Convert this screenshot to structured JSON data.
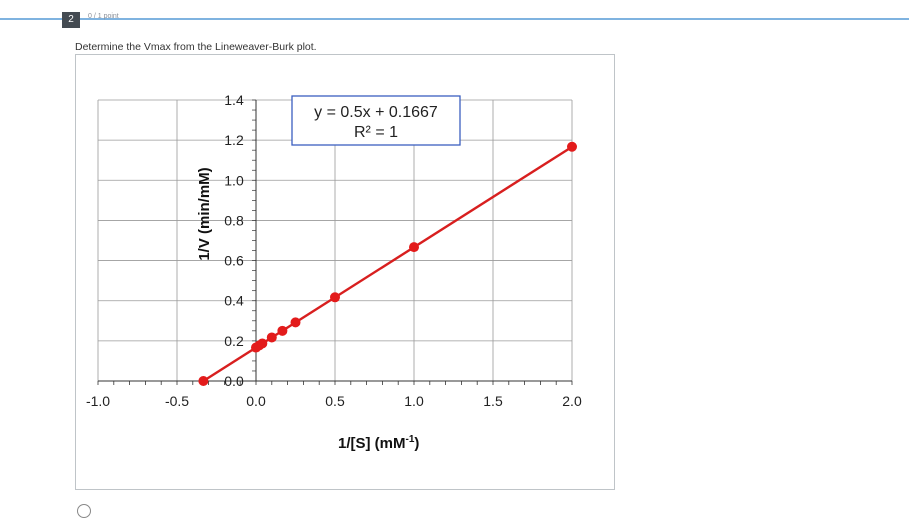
{
  "question": {
    "number": "2",
    "points": "0 / 1 point",
    "prompt": "Determine the Vmax from the Lineweaver-Burk plot."
  },
  "chart_data": {
    "type": "scatter",
    "equation_line1": "y = 0.5x + 0.1667",
    "equation_line2": "R² = 1",
    "xlabel": "1/[S] (mM",
    "xlabel_sup": "-1",
    "xlabel_end": ")",
    "ylabel": "1/V (min/mM)",
    "xlim": [
      -1.0,
      2.0
    ],
    "ylim": [
      0.0,
      1.4
    ],
    "x_ticks": [
      "-1.0",
      "-0.5",
      "0.0",
      "0.5",
      "1.0",
      "1.5",
      "2.0"
    ],
    "y_ticks": [
      "0.0",
      "0.2",
      "0.4",
      "0.6",
      "0.8",
      "1.0",
      "1.2",
      "1.4"
    ],
    "points": [
      {
        "x": -0.333,
        "y": 0.0
      },
      {
        "x": 0.0,
        "y": 0.1667
      },
      {
        "x": 0.02,
        "y": 0.177
      },
      {
        "x": 0.04,
        "y": 0.187
      },
      {
        "x": 0.1,
        "y": 0.217
      },
      {
        "x": 0.167,
        "y": 0.25
      },
      {
        "x": 0.25,
        "y": 0.292
      },
      {
        "x": 0.5,
        "y": 0.417
      },
      {
        "x": 1.0,
        "y": 0.667
      },
      {
        "x": 2.0,
        "y": 1.167
      }
    ],
    "line": {
      "slope": 0.5,
      "intercept": 0.1667,
      "x_from": -0.333,
      "x_to": 2.0
    },
    "marker_color": "#e31b1b",
    "line_color": "#d81f1f",
    "equation_box_color": "#3b5fc0",
    "grid": true
  }
}
